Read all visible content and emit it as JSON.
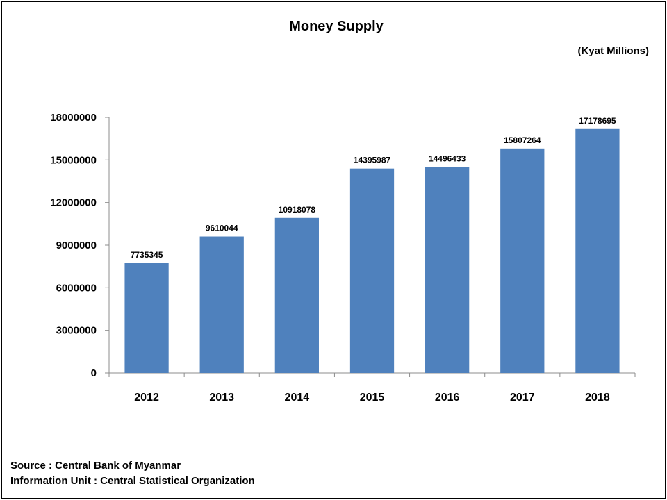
{
  "chart_data": {
    "type": "bar",
    "title": "Money Supply",
    "unit_label": "(Kyat Millions)",
    "categories": [
      "2012",
      "2013",
      "2014",
      "2015",
      "2016",
      "2017",
      "2018"
    ],
    "values": [
      7735345,
      9610044,
      10918078,
      14395987,
      14496433,
      15807264,
      17178695
    ],
    "data_labels": [
      "7735345",
      "9610044",
      "10918078",
      "14395987",
      "14496433",
      "15807264",
      "17178695"
    ],
    "yticks": [
      "0",
      "3000000",
      "6000000",
      "9000000",
      "12000000",
      "15000000",
      "18000000"
    ],
    "ylim": [
      0,
      18000000
    ],
    "grid": false,
    "legend": "none",
    "bar_color": "#4f81bd"
  },
  "footer": {
    "source": "Source : Central Bank of Myanmar",
    "info": "Information Unit : Central Statistical Organization"
  }
}
